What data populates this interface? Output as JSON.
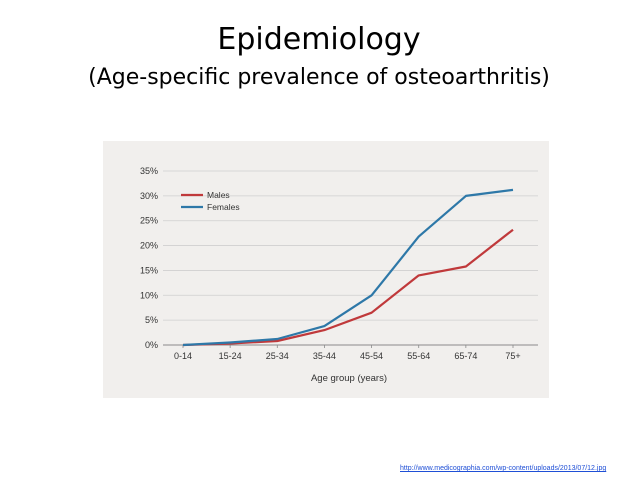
{
  "slide": {
    "title": "Epidemiology",
    "subtitle": "(Age-specific prevalence of osteoarthritis)",
    "source_url": "http://www.medicographia.com/wp-content/uploads/2013/07/12.jpg"
  },
  "chart_data": {
    "type": "line",
    "title": "",
    "xlabel": "Age group (years)",
    "ylabel": "",
    "categories": [
      "0-14",
      "15-24",
      "25-34",
      "35-44",
      "45-54",
      "55-64",
      "65-74",
      "75+"
    ],
    "ylim": [
      0,
      35
    ],
    "yticks": [
      0,
      5,
      10,
      15,
      20,
      25,
      30,
      35
    ],
    "ytick_labels": [
      "0%",
      "5%",
      "10%",
      "15%",
      "20%",
      "25%",
      "30%",
      "35%"
    ],
    "grid": "horizontal",
    "legend_position": "top-left",
    "series": [
      {
        "name": "Males",
        "color": "#c0393b",
        "values": [
          0,
          0.3,
          0.8,
          3.0,
          6.5,
          14.0,
          15.8,
          23.2
        ]
      },
      {
        "name": "Females",
        "color": "#2e78a8",
        "values": [
          0,
          0.5,
          1.2,
          3.8,
          10.0,
          21.8,
          30.0,
          31.2
        ]
      }
    ]
  }
}
